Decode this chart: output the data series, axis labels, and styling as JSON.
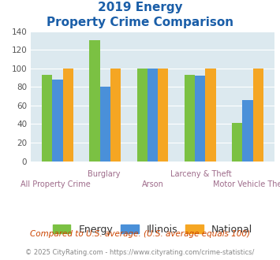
{
  "title_line1": "2019 Energy",
  "title_line2": "Property Crime Comparison",
  "categories": [
    "All Property Crime",
    "Burglary",
    "Arson",
    "Larceny & Theft",
    "Motor Vehicle Theft"
  ],
  "x_labels_top": [
    "",
    "Burglary",
    "",
    "Larceny & Theft",
    ""
  ],
  "x_labels_bottom": [
    "All Property Crime",
    "",
    "Arson",
    "",
    "Motor Vehicle Theft"
  ],
  "energy_values": [
    93,
    130,
    100,
    93,
    41
  ],
  "illinois_values": [
    88,
    80,
    100,
    92,
    66
  ],
  "national_values": [
    100,
    100,
    100,
    100,
    100
  ],
  "energy_color": "#7bc143",
  "illinois_color": "#4a90d9",
  "national_color": "#f5a623",
  "ylim": [
    0,
    140
  ],
  "yticks": [
    0,
    20,
    40,
    60,
    80,
    100,
    120,
    140
  ],
  "plot_bg_color": "#dce9ef",
  "title_color": "#1a5ea8",
  "xlabel_top_color": "#9e6b8a",
  "xlabel_bot_color": "#9e6b8a",
  "ylabel_color": "#555555",
  "footnote1": "Compared to U.S. average. (U.S. average equals 100)",
  "footnote2": "© 2025 CityRating.com - https://www.cityrating.com/crime-statistics/",
  "footnote1_color": "#cc4400",
  "footnote2_color": "#888888",
  "legend_labels": [
    "Energy",
    "Illinois",
    "National"
  ]
}
